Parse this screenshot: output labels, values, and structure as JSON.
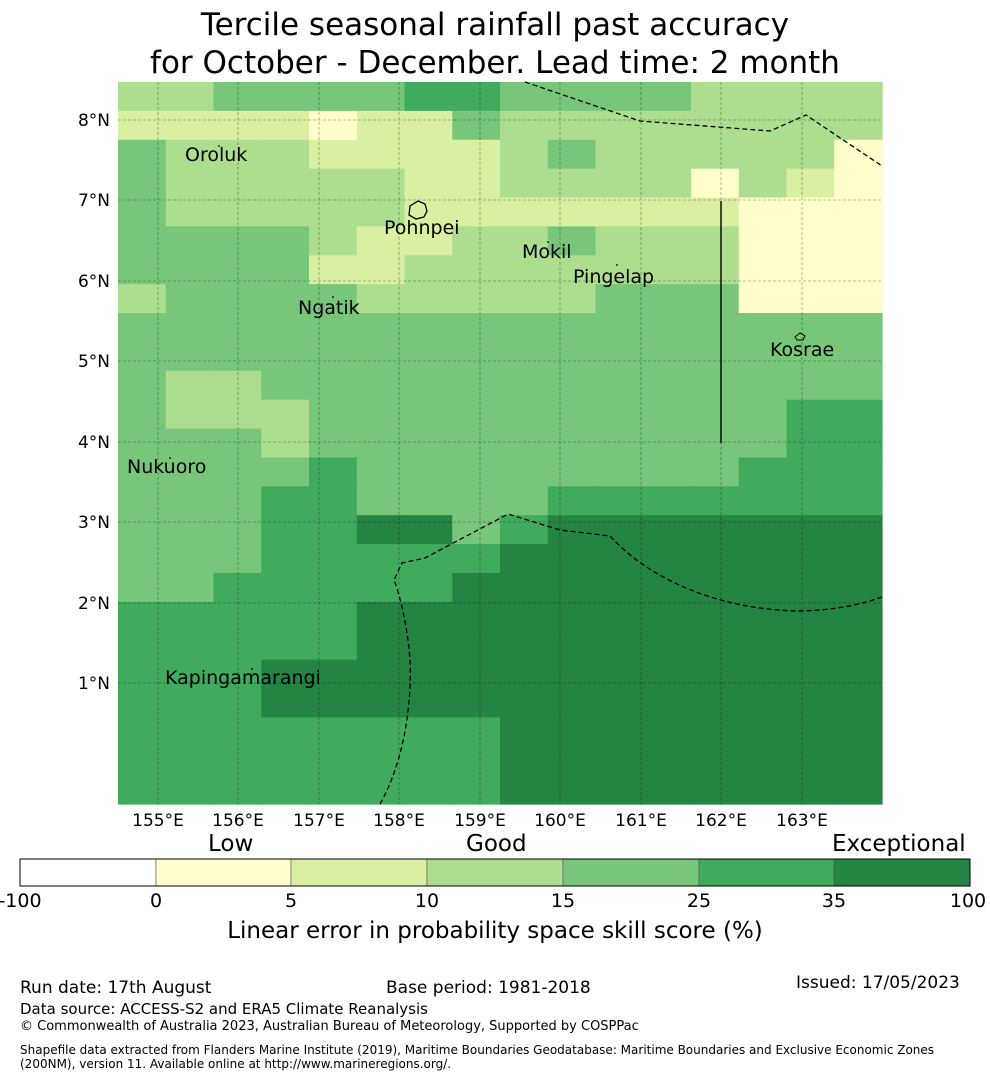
{
  "title_line1": "Tercile seasonal rainfall past accuracy",
  "title_line2": "for October - December. Lead time: 2 month",
  "map": {
    "lon_labels": [
      "155°E",
      "156°E",
      "157°E",
      "158°E",
      "159°E",
      "160°E",
      "161°E",
      "162°E",
      "163°E"
    ],
    "lat_labels": [
      "8°N",
      "7°N",
      "6°N",
      "5°N",
      "4°N",
      "3°N",
      "2°N",
      "1°N"
    ],
    "places": [
      "Oroluk",
      "Pohnpei",
      "Mokil",
      "Pingelap",
      "Ngatik",
      "Kosrae",
      "Nukuoro",
      "Kapingamarangi"
    ],
    "grid_levels": [
      "2233334433332222",
      "1111011322222222",
      "3222111123222220",
      "3222221122220210",
      "3222221111111000",
      "3333211223222000",
      "3333112222222000",
      "2333322222333000",
      "3333333333333333",
      "3333333333333333",
      "3223333333333333",
      "3222333333333344",
      "3332333333333344",
      "3333433333333444",
      "3334433334444444",
      "3334455345555555",
      "3334444455555555",
      "3344444555555555",
      "4444455555555555",
      "4444455555555555",
      "4445555555555555",
      "4445555555555555",
      "4444444455555555",
      "4444444455555555",
      "4444444455555555"
    ]
  },
  "colorbar": {
    "category_labels": [
      "Low",
      "Good",
      "Exceptional"
    ],
    "ticks": [
      "-100",
      "0",
      "5",
      "10",
      "15",
      "25",
      "35",
      "100"
    ],
    "colors": [
      "#ffffff",
      "#ffffcc",
      "#d9f0a3",
      "#addd8e",
      "#78c679",
      "#41ab5d",
      "#238443"
    ],
    "title": "Linear error in probability space skill score (%)"
  },
  "footer": {
    "run_date": "Run date: 17th August",
    "base_period": "Base period: 1981-2018",
    "issued": "Issued: 17/05/2023",
    "data_source": "Data source: ACCESS-S2 and ERA5 Climate Reanalysis",
    "copyright": "© Commonwealth of Australia 2023, Australian Bureau of Meteorology, Supported by COSPPac",
    "shapefile_line1": "Shapefile data extracted from Flanders Marine Institute (2019), Maritime Boundaries Geodatabase: Maritime Boundaries and Exclusive Economic Zones",
    "shapefile_line2": "(200NM), version 11. Available online at http://www.marineregions.org/."
  }
}
